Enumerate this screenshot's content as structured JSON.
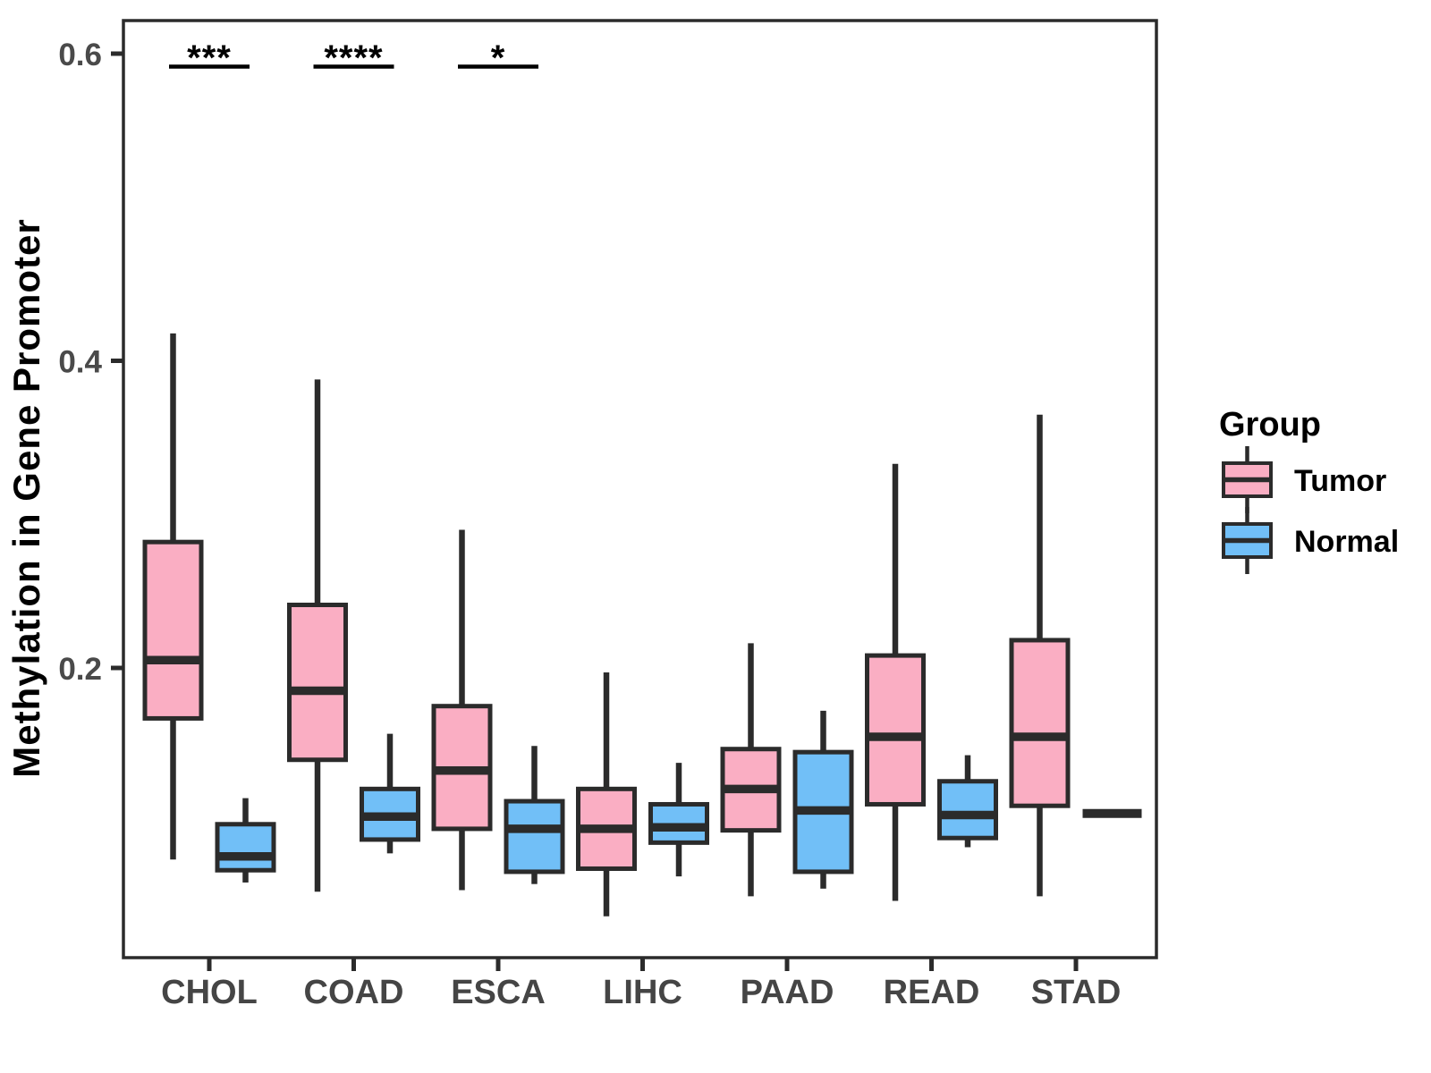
{
  "colors": {
    "tumor_fill": "#FAAEC3",
    "normal_fill": "#71BFF7",
    "box_outline": "#2B2B2B",
    "axis_line": "#2B2B2B",
    "tick_text": "#4A4A4A",
    "annotation": "#000000",
    "background": "#FFFFFF"
  },
  "chart_data": {
    "type": "boxplot",
    "title": "",
    "xlabel": "",
    "ylabel": "Methylation in Gene Promoter",
    "categories": [
      "CHOL",
      "COAD",
      "ESCA",
      "LIHC",
      "PAAD",
      "READ",
      "STAD"
    ],
    "ylim": [
      0.011,
      0.622
    ],
    "grid": false,
    "yticks": {
      "values": [
        0.2,
        0.4,
        0.6
      ],
      "labels": [
        "0.2",
        "0.4",
        "0.6"
      ]
    },
    "legend": {
      "title": "Group",
      "position": "right",
      "entries": [
        {
          "label": "Tumor",
          "fill": "#FAAEC3"
        },
        {
          "label": "Normal",
          "fill": "#71BFF7"
        }
      ]
    },
    "series": [
      {
        "name": "Tumor",
        "fill": "#FAAEC3",
        "boxes": [
          {
            "category": "CHOL",
            "min": 0.075,
            "q1": 0.167,
            "median": 0.205,
            "q3": 0.282,
            "max": 0.418
          },
          {
            "category": "COAD",
            "min": 0.054,
            "q1": 0.14,
            "median": 0.185,
            "q3": 0.241,
            "max": 0.388
          },
          {
            "category": "ESCA",
            "min": 0.055,
            "q1": 0.095,
            "median": 0.133,
            "q3": 0.175,
            "max": 0.29
          },
          {
            "category": "LIHC",
            "min": 0.038,
            "q1": 0.069,
            "median": 0.095,
            "q3": 0.121,
            "max": 0.197
          },
          {
            "category": "PAAD",
            "min": 0.051,
            "q1": 0.094,
            "median": 0.121,
            "q3": 0.147,
            "max": 0.216
          },
          {
            "category": "READ",
            "min": 0.048,
            "q1": 0.111,
            "median": 0.155,
            "q3": 0.208,
            "max": 0.333
          },
          {
            "category": "STAD",
            "min": 0.051,
            "q1": 0.11,
            "median": 0.155,
            "q3": 0.218,
            "max": 0.365
          }
        ]
      },
      {
        "name": "Normal",
        "fill": "#71BFF7",
        "boxes": [
          {
            "category": "CHOL",
            "min": 0.06,
            "q1": 0.068,
            "median": 0.077,
            "q3": 0.098,
            "max": 0.115
          },
          {
            "category": "COAD",
            "min": 0.079,
            "q1": 0.088,
            "median": 0.103,
            "q3": 0.121,
            "max": 0.157
          },
          {
            "category": "ESCA",
            "min": 0.059,
            "q1": 0.067,
            "median": 0.095,
            "q3": 0.113,
            "max": 0.149
          },
          {
            "category": "LIHC",
            "min": 0.064,
            "q1": 0.086,
            "median": 0.096,
            "q3": 0.111,
            "max": 0.138
          },
          {
            "category": "PAAD",
            "min": 0.056,
            "q1": 0.067,
            "median": 0.107,
            "q3": 0.145,
            "max": 0.172
          },
          {
            "category": "READ",
            "min": 0.083,
            "q1": 0.089,
            "median": 0.104,
            "q3": 0.126,
            "max": 0.143
          },
          {
            "category": "STAD",
            "min": 0.105,
            "q1": 0.105,
            "median": 0.105,
            "q3": 0.105,
            "max": 0.105
          }
        ]
      }
    ],
    "annotations": [
      {
        "category": "CHOL",
        "stars": "***",
        "y": 0.592
      },
      {
        "category": "COAD",
        "stars": "****",
        "y": 0.592
      },
      {
        "category": "ESCA",
        "stars": "*",
        "y": 0.592
      }
    ]
  }
}
